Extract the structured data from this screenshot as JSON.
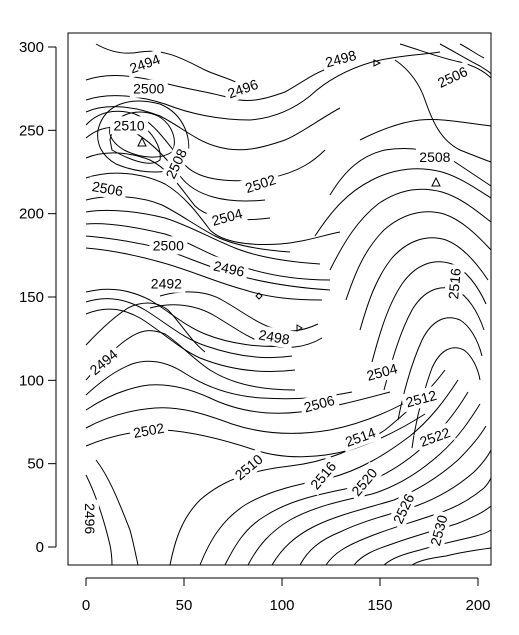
{
  "chart_data": {
    "type": "contour",
    "title": "",
    "xlabel": "",
    "ylabel": "",
    "xlim": [
      -10,
      206
    ],
    "ylim": [
      -12,
      307
    ],
    "x_ticks": [
      0,
      50,
      100,
      150,
      200
    ],
    "y_ticks": [
      0,
      50,
      100,
      150,
      200,
      250,
      300
    ],
    "grid": false,
    "contour_interval": 2,
    "labels": [
      {
        "text": "2494",
        "x": 30,
        "y": 290
      },
      {
        "text": "2496",
        "x": 80,
        "y": 275
      },
      {
        "text": "2498",
        "x": 130,
        "y": 293
      },
      {
        "text": "2506",
        "x": 187,
        "y": 282
      },
      {
        "text": "2500",
        "x": 32,
        "y": 275
      },
      {
        "text": "2510",
        "x": 22,
        "y": 253
      },
      {
        "text": "2508",
        "x": 46,
        "y": 230
      },
      {
        "text": "2502",
        "x": 89,
        "y": 218
      },
      {
        "text": "2508",
        "x": 178,
        "y": 234
      },
      {
        "text": "2506",
        "x": 11,
        "y": 215
      },
      {
        "text": "2504",
        "x": 72,
        "y": 198
      },
      {
        "text": "2500",
        "x": 42,
        "y": 181
      },
      {
        "text": "2496",
        "x": 73,
        "y": 167
      },
      {
        "text": "2492",
        "x": 41,
        "y": 158
      },
      {
        "text": "2516",
        "x": 188,
        "y": 158
      },
      {
        "text": "2498",
        "x": 96,
        "y": 126
      },
      {
        "text": "2494",
        "x": 9,
        "y": 111
      },
      {
        "text": "2504",
        "x": 151,
        "y": 105
      },
      {
        "text": "2506",
        "x": 119,
        "y": 86
      },
      {
        "text": "2512",
        "x": 171,
        "y": 89
      },
      {
        "text": "2502",
        "x": 32,
        "y": 70
      },
      {
        "text": "2514",
        "x": 140,
        "y": 66
      },
      {
        "text": "2522",
        "x": 178,
        "y": 66
      },
      {
        "text": "2510",
        "x": 83,
        "y": 48
      },
      {
        "text": "2516",
        "x": 121,
        "y": 43
      },
      {
        "text": "2520",
        "x": 142,
        "y": 39
      },
      {
        "text": "2526",
        "x": 162,
        "y": 23
      },
      {
        "text": "2530",
        "x": 180,
        "y": 10
      },
      {
        "text": "2496",
        "x": 2,
        "y": 17
      }
    ]
  }
}
